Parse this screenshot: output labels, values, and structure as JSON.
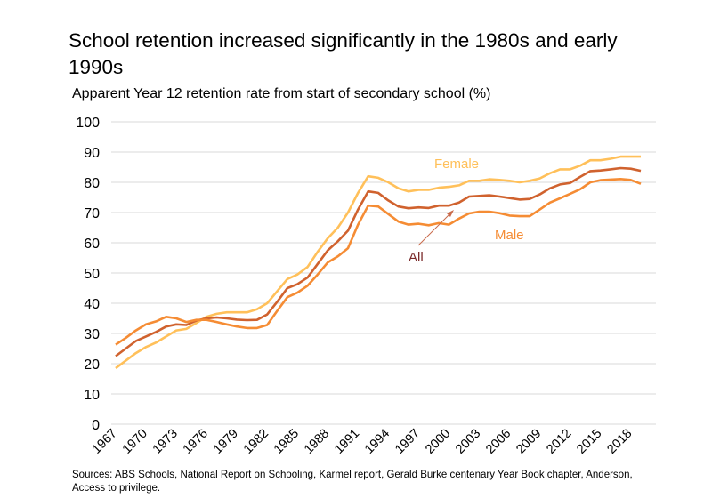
{
  "chart_data": {
    "type": "line",
    "title": "School retention increased significantly in the 1980s and early 1990s",
    "subtitle": "Apparent Year 12 retention rate from start of secondary school (%)",
    "ylim": [
      0,
      100
    ],
    "yticks": [
      0,
      10,
      20,
      30,
      40,
      50,
      60,
      70,
      80,
      90,
      100
    ],
    "xlim": [
      1967,
      2019
    ],
    "xticks": [
      1967,
      1970,
      1973,
      1976,
      1979,
      1982,
      1985,
      1988,
      1991,
      1994,
      1997,
      2000,
      2003,
      2006,
      2009,
      2012,
      2015,
      2018
    ],
    "grid": "horizontal",
    "x": [
      1967,
      1968,
      1969,
      1970,
      1971,
      1972,
      1973,
      1974,
      1975,
      1976,
      1977,
      1978,
      1979,
      1980,
      1981,
      1982,
      1983,
      1984,
      1985,
      1986,
      1987,
      1988,
      1989,
      1990,
      1991,
      1992,
      1993,
      1994,
      1995,
      1996,
      1997,
      1998,
      1999,
      2000,
      2001,
      2002,
      2003,
      2004,
      2005,
      2006,
      2007,
      2008,
      2009,
      2010,
      2011,
      2012,
      2013,
      2014,
      2015,
      2016,
      2017,
      2018,
      2019
    ],
    "series": [
      {
        "name": "Female",
        "color": "#FFC05A",
        "values": [
          18.5,
          21,
          23.5,
          25.5,
          27,
          29,
          31,
          31.5,
          33.5,
          35.5,
          36.5,
          37,
          37,
          37,
          38,
          40,
          44,
          48,
          49.5,
          52,
          57,
          61.5,
          65,
          70,
          76.5,
          82,
          81.5,
          80,
          78,
          77,
          77.5,
          77.5,
          78.2,
          78.5,
          79,
          80.5,
          80.5,
          81,
          80.8,
          80.5,
          80,
          80.5,
          81.3,
          83,
          84.3,
          84.3,
          85.5,
          87.3,
          87.3,
          87.8,
          88.5,
          88.5,
          88.5
        ]
      },
      {
        "name": "All",
        "color": "#D0622E",
        "values": [
          22.5,
          25,
          27.5,
          29,
          30.5,
          32.3,
          33,
          32.8,
          34.3,
          35,
          35.3,
          35,
          34.6,
          34.4,
          34.5,
          36.3,
          40.5,
          45,
          46.3,
          48.5,
          53,
          57.5,
          60.5,
          64,
          71,
          77,
          76.5,
          74,
          72,
          71.4,
          71.7,
          71.5,
          72.3,
          72.3,
          73.3,
          75.3,
          75.5,
          75.7,
          75.3,
          74.8,
          74.3,
          74.5,
          76,
          78,
          79.3,
          79.8,
          81.8,
          83.7,
          83.9,
          84.3,
          84.7,
          84.5,
          83.8
        ]
      },
      {
        "name": "Male",
        "color": "#F58C34",
        "values": [
          26.3,
          28.5,
          31,
          33,
          34,
          35.5,
          35,
          33.8,
          34.5,
          34.5,
          33.8,
          33,
          32.3,
          31.8,
          31.8,
          32.8,
          37.5,
          42,
          43.5,
          45.8,
          49.5,
          53.5,
          55.5,
          58.2,
          66,
          72.3,
          72,
          69.5,
          67,
          66,
          66.3,
          65.8,
          66.5,
          66,
          68,
          69.7,
          70.3,
          70.3,
          69.8,
          69,
          68.8,
          68.8,
          71,
          73.3,
          74.7,
          76.2,
          77.7,
          80,
          80.7,
          80.9,
          81.1,
          80.8,
          79.5
        ]
      }
    ],
    "annotations": [
      {
        "text": "Female",
        "color": "#FFC05A"
      },
      {
        "text": "Male",
        "color": "#F58C34"
      },
      {
        "text": "All",
        "color": "#7A2A2A",
        "arrow": true
      }
    ],
    "source": "Sources: ABS Schools, National Report on Schooling, Karmel report, Gerald Burke centenary Year Book chapter, Anderson, Access to privilege."
  }
}
